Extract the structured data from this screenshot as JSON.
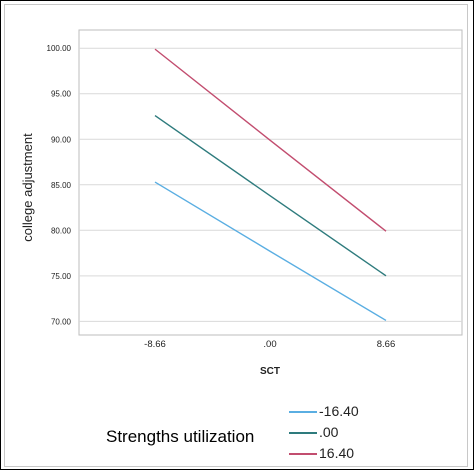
{
  "chart_data": {
    "type": "line",
    "title": "",
    "xlabel": "SCT",
    "ylabel": "college adjustment",
    "x": [
      -8.66,
      0,
      8.66
    ],
    "x_tick_labels": [
      "-8.66",
      ".00",
      "8.66"
    ],
    "ylim": [
      68.5,
      102
    ],
    "y_ticks": [
      70,
      75,
      80,
      85,
      90,
      95,
      100
    ],
    "y_tick_labels": [
      "70.00",
      "75.00",
      "80.00",
      "85.00",
      "90.00",
      "95.00",
      "100.00"
    ],
    "grid": "horizontal",
    "legend": {
      "title": "Strengths utilization",
      "placement": "bottom"
    },
    "series": [
      {
        "name": "-16.40",
        "color": "#5aaee2",
        "values": [
          85.3,
          77.7,
          70.1
        ]
      },
      {
        "name": ".00",
        "color": "#2e7b7d",
        "values": [
          92.6,
          83.8,
          75.0
        ]
      },
      {
        "name": "16.40",
        "color": "#c24d6f",
        "values": [
          99.9,
          89.9,
          79.9
        ]
      }
    ]
  }
}
